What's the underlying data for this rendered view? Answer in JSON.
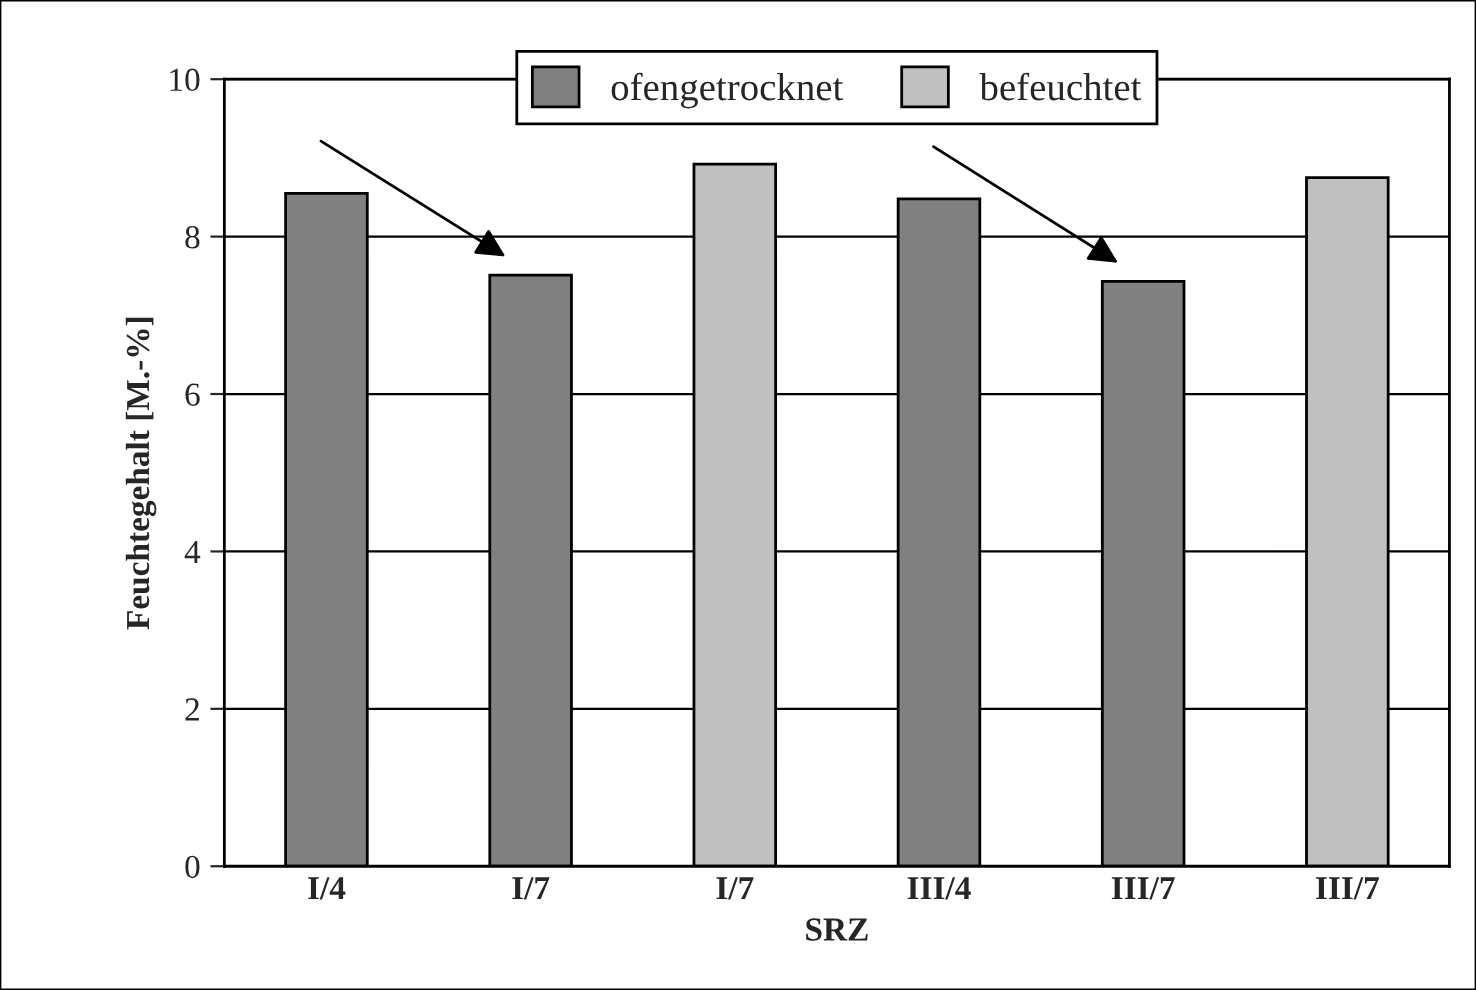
{
  "chart_data": {
    "type": "bar",
    "xlabel": "SRZ",
    "ylabel": "Feuchtegehalt [M.-%]",
    "categories": [
      "I/4",
      "I/7",
      "I/7",
      "III/4",
      "III/7",
      "III/7"
    ],
    "series": [
      {
        "name": "ofengetrocknet",
        "color": "#808080",
        "values": [
          8.55,
          7.51,
          null,
          8.48,
          7.43,
          null
        ]
      },
      {
        "name": "befeuchtet",
        "color": "#c0c0c0",
        "values": [
          null,
          null,
          8.92,
          null,
          null,
          8.75
        ]
      }
    ],
    "ylim": [
      0,
      10
    ],
    "yticks": [
      0,
      2,
      4,
      6,
      8,
      10
    ],
    "grid": "y",
    "legend": "top"
  }
}
